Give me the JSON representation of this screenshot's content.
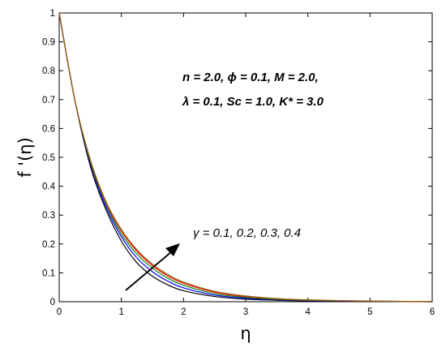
{
  "chart_data": {
    "type": "line",
    "title": "",
    "xlabel": "η",
    "ylabel": "f '(η)",
    "xlim": [
      0,
      6
    ],
    "ylim": [
      0,
      1
    ],
    "x_ticks": [
      "0",
      "1",
      "2",
      "3",
      "4",
      "5",
      "6"
    ],
    "y_ticks": [
      "0",
      "0.1",
      "0.2",
      "0.3",
      "0.4",
      "0.5",
      "0.6",
      "0.7",
      "0.8",
      "0.9",
      "1"
    ],
    "grid": false,
    "legend": "none",
    "parameter_lines": [
      "n = 2.0,  ϕ = 0.1,  M = 2.0,",
      "λ = 0.1,  Sc = 1.0,  K* = 3.0"
    ],
    "arrow_annotation": "γ = 0.1, 0.2, 0.3, 0.4",
    "x": [
      0,
      0.25,
      0.5,
      0.75,
      1,
      1.25,
      1.5,
      1.75,
      2,
      2.5,
      3,
      3.5,
      4,
      4.5,
      5,
      5.5,
      6
    ],
    "series": [
      {
        "color": "#000000",
        "values": [
          1.0,
          0.7,
          0.47,
          0.32,
          0.21,
          0.135,
          0.088,
          0.058,
          0.038,
          0.018,
          0.009,
          0.005,
          0.003,
          0.002,
          0.001,
          0.0005,
          0.0
        ]
      },
      {
        "color": "#0000ff",
        "values": [
          1.0,
          0.7,
          0.48,
          0.33,
          0.225,
          0.152,
          0.104,
          0.071,
          0.048,
          0.023,
          0.012,
          0.0065,
          0.004,
          0.0025,
          0.0015,
          0.001,
          0.0
        ]
      },
      {
        "color": "#008000",
        "values": [
          1.0,
          0.7,
          0.485,
          0.34,
          0.235,
          0.165,
          0.116,
          0.081,
          0.057,
          0.028,
          0.015,
          0.008,
          0.005,
          0.003,
          0.002,
          0.001,
          0.0
        ]
      },
      {
        "color": "#ff0000",
        "values": [
          1.0,
          0.7,
          0.49,
          0.345,
          0.245,
          0.175,
          0.125,
          0.089,
          0.064,
          0.033,
          0.018,
          0.01,
          0.006,
          0.0035,
          0.002,
          0.0012,
          0.0
        ]
      },
      {
        "color": "#8b6914",
        "values": [
          1.0,
          0.7,
          0.492,
          0.348,
          0.25,
          0.18,
          0.13,
          0.094,
          0.068,
          0.036,
          0.02,
          0.011,
          0.0065,
          0.004,
          0.0025,
          0.0015,
          0.0
        ]
      }
    ]
  }
}
